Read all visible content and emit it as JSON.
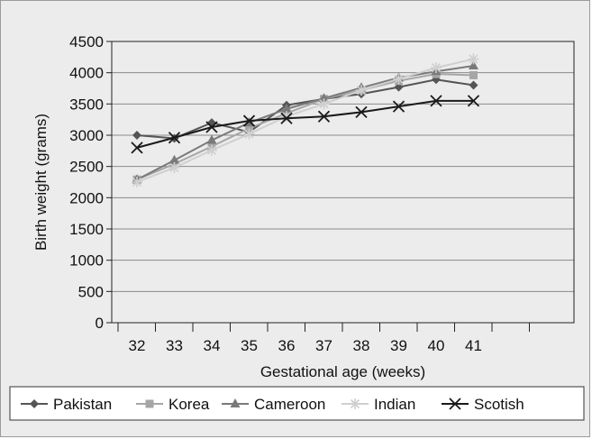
{
  "chart_data": {
    "type": "line",
    "title": "",
    "xlabel": "Gestational age (weeks)",
    "ylabel": "Birth weight (grams)",
    "categories": [
      "32",
      "33",
      "34",
      "35",
      "36",
      "37",
      "38",
      "39",
      "40",
      "41"
    ],
    "ylim": [
      0,
      4500
    ],
    "yticks": [
      0,
      500,
      1000,
      1500,
      2000,
      2500,
      3000,
      3500,
      4000,
      4500
    ],
    "grid": true,
    "legend_position": "bottom",
    "series": [
      {
        "name": "Pakistan",
        "marker": "diamond",
        "color": "#555555",
        "values": [
          3000,
          2950,
          3200,
          3050,
          3480,
          3580,
          3660,
          3770,
          3890,
          3800
        ]
      },
      {
        "name": "Korea",
        "marker": "square",
        "color": "#a6a6a6",
        "values": [
          2290,
          2540,
          2820,
          3110,
          3350,
          3580,
          3720,
          3870,
          3980,
          3960
        ]
      },
      {
        "name": "Cameroon",
        "marker": "triangle",
        "color": "#7a7a7a",
        "values": [
          2290,
          2600,
          2920,
          3200,
          3420,
          3590,
          3760,
          3920,
          4020,
          4110
        ]
      },
      {
        "name": "Indian",
        "marker": "star",
        "color": "#cfcfcf",
        "values": [
          2250,
          2480,
          2760,
          3020,
          3300,
          3500,
          3720,
          3900,
          4080,
          4220
        ]
      },
      {
        "name": "Scotish",
        "marker": "x",
        "color": "#1a1a1a",
        "values": [
          2800,
          2960,
          3130,
          3230,
          3270,
          3300,
          3370,
          3460,
          3550,
          3550
        ]
      }
    ]
  }
}
